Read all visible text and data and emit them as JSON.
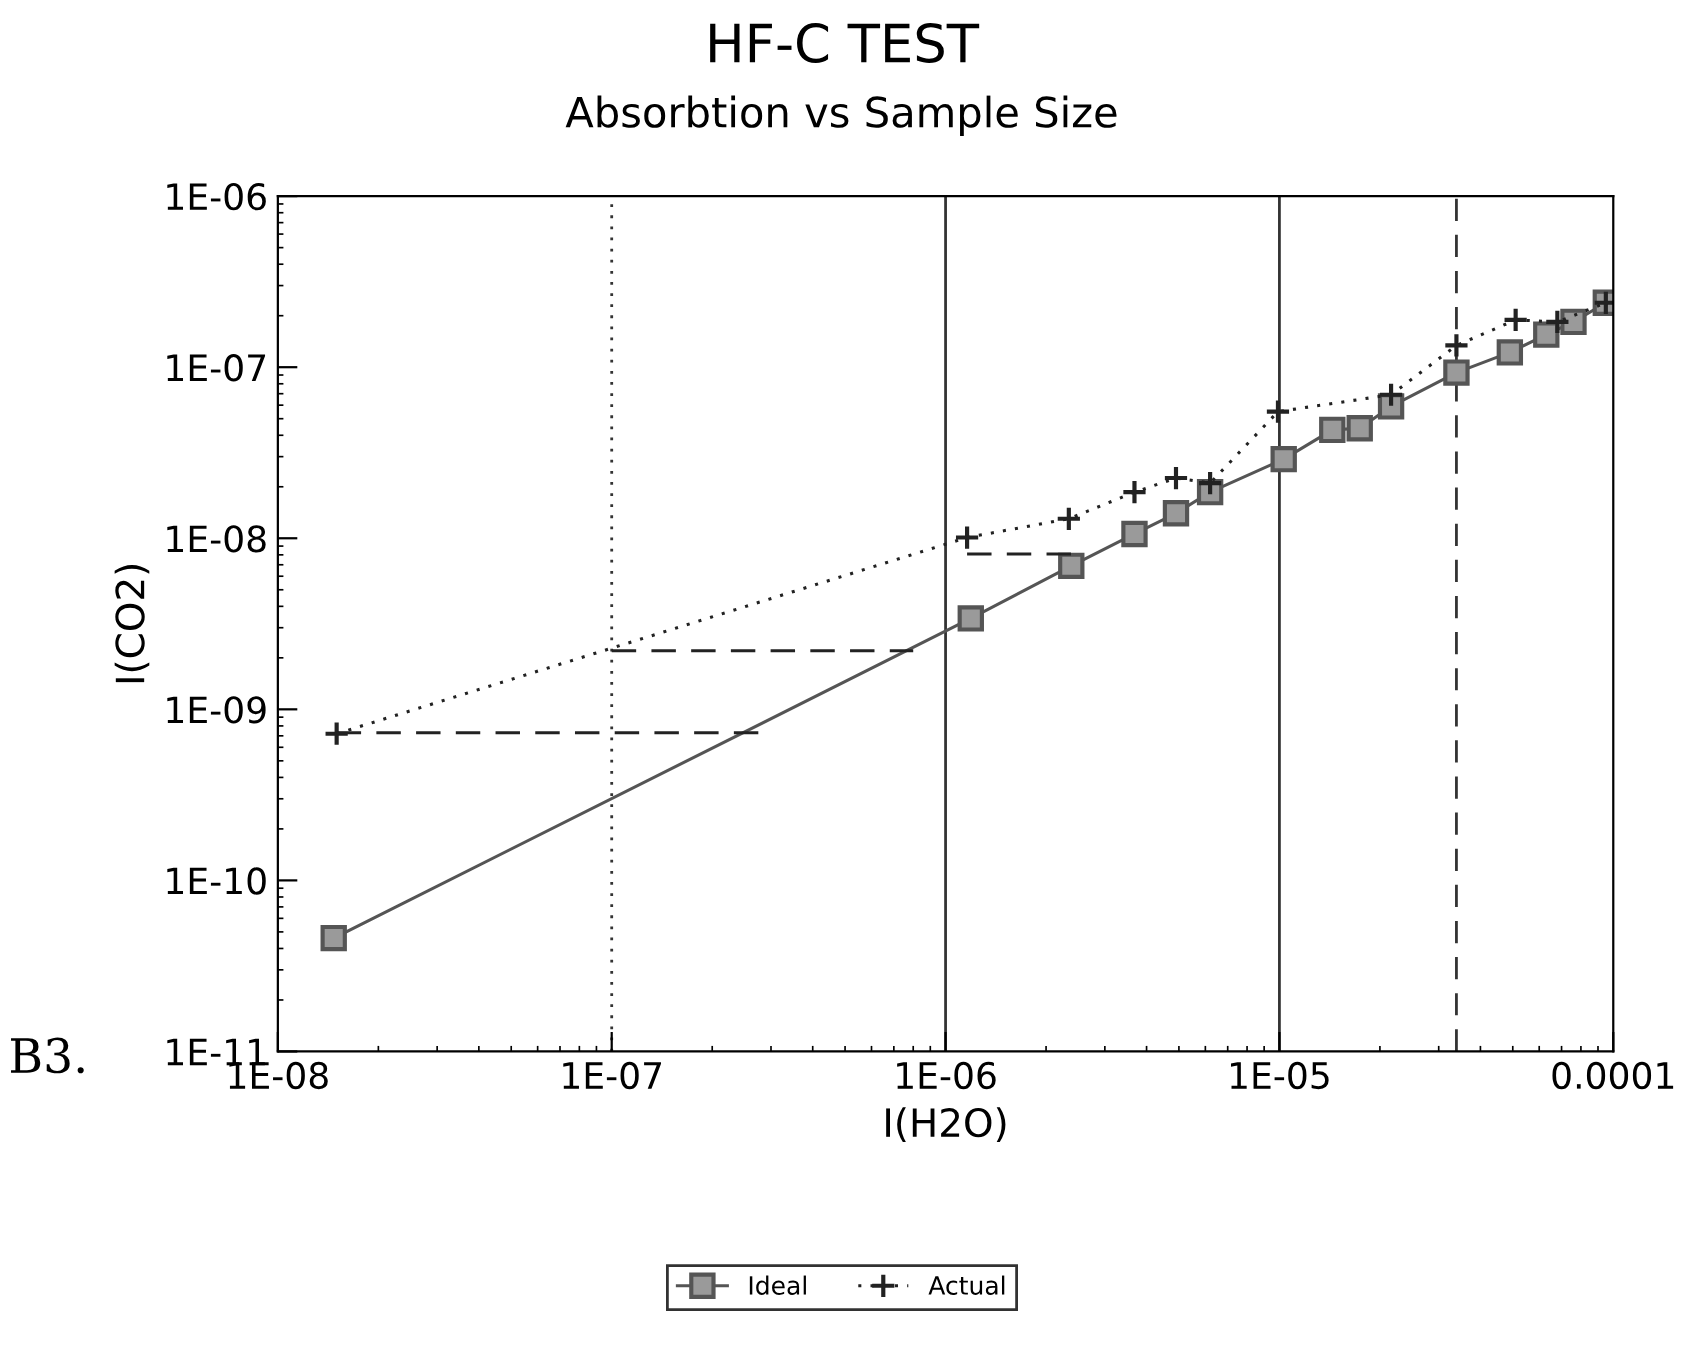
{
  "chart_data": {
    "type": "line",
    "title": "HF-C TEST",
    "subtitle": "Absorbtion vs Sample Size",
    "xlabel": "I(H2O)",
    "ylabel": "I(CO2)",
    "log": "xy",
    "xlim": [
      1e-08,
      0.0001
    ],
    "ylim": [
      1e-11,
      1e-06
    ],
    "xticks": [
      {
        "value": 1e-08,
        "label": "1E-08"
      },
      {
        "value": 1e-07,
        "label": "1E-07"
      },
      {
        "value": 1e-06,
        "label": "1E-06"
      },
      {
        "value": 1e-05,
        "label": "1E-05"
      },
      {
        "value": 0.0001,
        "label": "0.0001"
      }
    ],
    "yticks": [
      {
        "value": 1e-11,
        "label": "1E-11"
      },
      {
        "value": 1e-10,
        "label": "1E-10"
      },
      {
        "value": 1e-09,
        "label": "1E-09"
      },
      {
        "value": 1e-08,
        "label": "1E-08"
      },
      {
        "value": 1e-07,
        "label": "1E-07"
      },
      {
        "value": 1e-06,
        "label": "1E-06"
      }
    ],
    "grid": false,
    "legend": "bottom",
    "series": [
      {
        "name": "Ideal",
        "color": "#555555",
        "marker": "square",
        "line_style": "solid",
        "x": [
          1.47e-08,
          1.19e-06,
          2.38e-06,
          3.68e-06,
          4.9e-06,
          6.2e-06,
          1.03e-05,
          1.44e-05,
          1.74e-05,
          2.16e-05,
          3.39e-05,
          4.9e-05,
          6.3e-05,
          7.6e-05,
          9.5e-05
        ],
        "values": [
          4.6e-11,
          3.4e-09,
          6.9e-09,
          1.06e-08,
          1.4e-08,
          1.86e-08,
          2.9e-08,
          4.3e-08,
          4.4e-08,
          5.9e-08,
          9.3e-08,
          1.22e-07,
          1.55e-07,
          1.84e-07,
          2.38e-07
        ]
      },
      {
        "name": "Actual",
        "color": "#222222",
        "marker": "cross",
        "line_style": "dotted",
        "x": [
          1.5e-08,
          1.16e-06,
          2.34e-06,
          3.68e-06,
          4.9e-06,
          6.2e-06,
          9.9e-06,
          2.16e-05,
          3.39e-05,
          5.1e-05,
          6.8e-05,
          9.5e-05
        ],
        "values": [
          7.2e-10,
          1.01e-08,
          1.3e-08,
          1.86e-08,
          2.25e-08,
          2.1e-08,
          5.5e-08,
          6.9e-08,
          1.34e-07,
          1.89e-07,
          1.84e-07,
          2.38e-07
        ]
      },
      {
        "color": "#222222",
        "marker": "none",
        "line_style": "dashed",
        "x": [
          1.5e-08,
          2.85e-07
        ],
        "values": [
          7.3e-10,
          7.3e-10
        ]
      },
      {
        "color": "#222222",
        "marker": "none",
        "line_style": "dashed",
        "x": [
          1e-07,
          8e-07
        ],
        "values": [
          2.2e-09,
          2.2e-09
        ]
      },
      {
        "color": "#222222",
        "marker": "none",
        "line_style": "dashed",
        "x": [
          1.16e-06,
          2.4e-06
        ],
        "values": [
          8.1e-09,
          8.1e-09
        ]
      }
    ],
    "ref_lines": [
      {
        "axis": "x",
        "value": 1e-07,
        "color": "#333333",
        "line_style": "dotted"
      },
      {
        "axis": "x",
        "value": 1e-06,
        "color": "#333333",
        "line_style": "solid"
      },
      {
        "axis": "x",
        "value": 1e-05,
        "color": "#333333",
        "line_style": "solid"
      },
      {
        "axis": "x",
        "value": 3.39e-05,
        "color": "#333333",
        "line_style": "dashed"
      }
    ],
    "annotations": [
      "B3."
    ]
  }
}
